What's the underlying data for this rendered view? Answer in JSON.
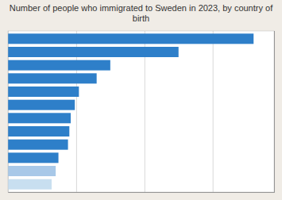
{
  "chart_data": {
    "type": "bar",
    "orientation": "horizontal",
    "title": "Number of people who immigrated to Sweden in 2023, by country of birth",
    "categories": [
      null,
      null,
      null,
      null,
      null,
      null,
      null,
      null,
      null,
      null,
      null,
      null
    ],
    "values": [
      18000,
      12500,
      7500,
      6500,
      5200,
      4900,
      4600,
      4500,
      4400,
      3700,
      3500,
      3200
    ],
    "colors": [
      "#2e7fc9",
      "#2e7fc9",
      "#2e7fc9",
      "#2e7fc9",
      "#2e7fc9",
      "#2e7fc9",
      "#2e7fc9",
      "#2e7fc9",
      "#2e7fc9",
      "#2e7fc9",
      "#a8c8e8",
      "#c8dff0"
    ],
    "xlim": [
      0,
      19500
    ],
    "xticks": [
      0,
      5000,
      10000,
      15000
    ],
    "grid": true,
    "tick_labels": false
  }
}
